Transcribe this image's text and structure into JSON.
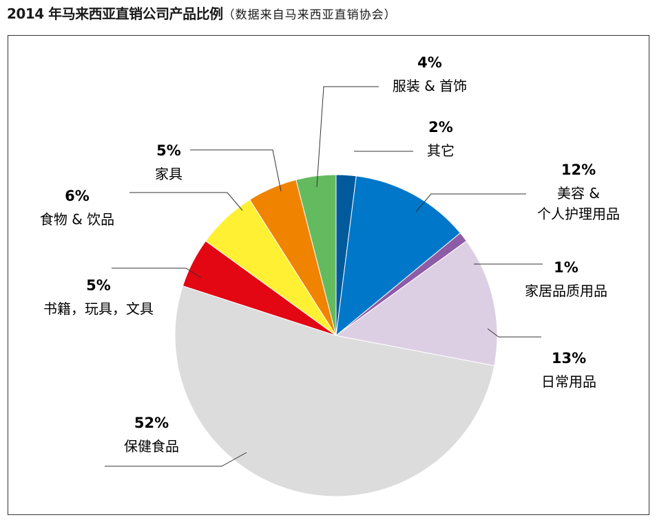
{
  "header": {
    "title": "2014 年马来西亚直销公司产品比例",
    "subtitle": "（数据来自马来西亚直销协会）"
  },
  "chart_data": {
    "type": "pie",
    "title": "2014 年马来西亚直销公司产品比例",
    "subtitle": "（数据来自马来西亚直销协会）",
    "start_angle_deg": 0,
    "direction": "clockwise",
    "slices": [
      {
        "label": [
          "其它"
        ],
        "value_text": "2%",
        "value": 2,
        "color": "#005a9c"
      },
      {
        "label": [
          "美容 &",
          "个人护理用品"
        ],
        "value_text": "12%",
        "value": 12,
        "color": "#0077c8"
      },
      {
        "label": [
          "家居品质用品"
        ],
        "value_text": "1%",
        "value": 1,
        "color": "#8e5ba6"
      },
      {
        "label": [
          "日常用品"
        ],
        "value_text": "13%",
        "value": 13,
        "color": "#dccfe3"
      },
      {
        "label": [
          "保健食品"
        ],
        "value_text": "52%",
        "value": 52,
        "color": "#dcdcdc"
      },
      {
        "label": [
          "书籍，玩具，文具"
        ],
        "value_text": "5%",
        "value": 5,
        "color": "#e30613"
      },
      {
        "label": [
          "食物 & 饮品"
        ],
        "value_text": "6%",
        "value": 6,
        "color": "#fff033"
      },
      {
        "label": [
          "家具"
        ],
        "value_text": "5%",
        "value": 5,
        "color": "#f08300"
      },
      {
        "label": [
          "服装 & 首饰"
        ],
        "value_text": "4%",
        "value": 4,
        "color": "#64bb5f"
      }
    ]
  }
}
